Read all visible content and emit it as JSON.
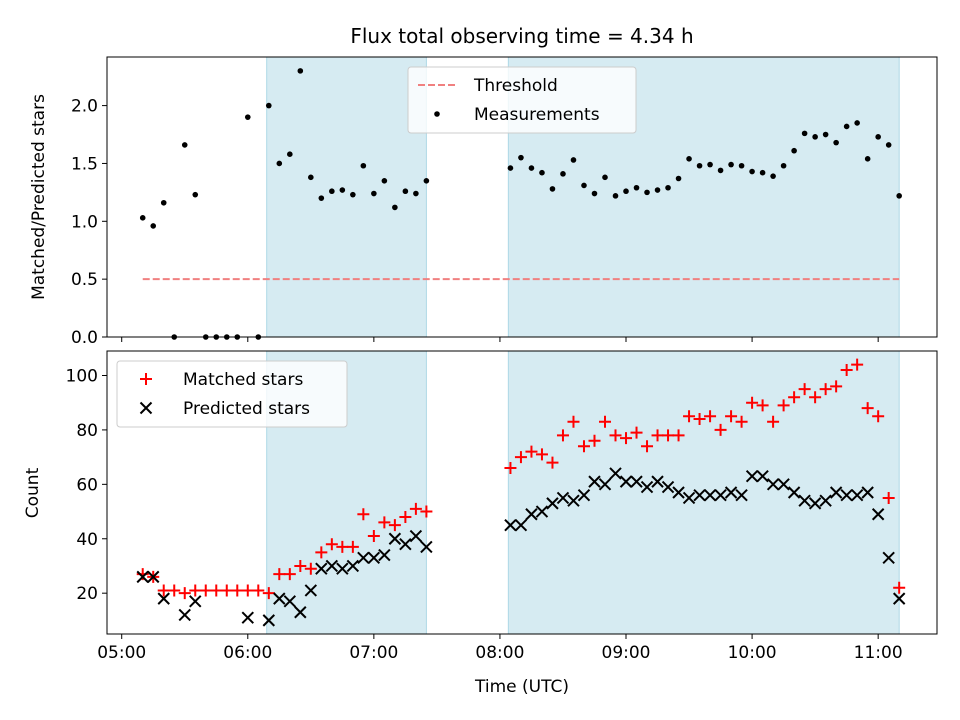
{
  "figure": {
    "title": "Flux total observing time = 4.34 h",
    "xlabel": "Time (UTC)",
    "x_ticks": [
      "05:00",
      "06:00",
      "07:00",
      "08:00",
      "09:00",
      "10:00",
      "11:00"
    ]
  },
  "chart_data": [
    {
      "type": "scatter",
      "ylabel": "Matched/Predicted stars",
      "xlim": [
        "04:53",
        "11:28"
      ],
      "ylim": [
        0,
        2.42
      ],
      "y_ticks": [
        "0.0",
        "0.5",
        "1.0",
        "1.5",
        "2.0"
      ],
      "grid": false,
      "legend_position": "upper center",
      "observing_windows": [
        {
          "start": "06:09",
          "end": "07:25"
        },
        {
          "start": "08:04",
          "end": "11:10"
        }
      ],
      "threshold": {
        "name": "Threshold",
        "value": 0.5,
        "x_start": "05:10",
        "x_end": "11:10",
        "color": "#f08080",
        "style": "dashed"
      },
      "series": [
        {
          "name": "Measurements",
          "color": "#000000",
          "marker": "dot",
          "x": [
            "05:10",
            "05:15",
            "05:20",
            "05:25",
            "05:30",
            "05:35",
            "05:40",
            "05:45",
            "05:50",
            "05:55",
            "06:00",
            "06:05",
            "06:10",
            "06:15",
            "06:20",
            "06:25",
            "06:30",
            "06:35",
            "06:40",
            "06:45",
            "06:50",
            "06:55",
            "07:00",
            "07:05",
            "07:10",
            "07:15",
            "07:20",
            "07:25",
            "08:05",
            "08:10",
            "08:15",
            "08:20",
            "08:25",
            "08:30",
            "08:35",
            "08:40",
            "08:45",
            "08:50",
            "08:55",
            "09:00",
            "09:05",
            "09:10",
            "09:15",
            "09:20",
            "09:25",
            "09:30",
            "09:35",
            "09:40",
            "09:45",
            "09:50",
            "09:55",
            "10:00",
            "10:05",
            "10:10",
            "10:15",
            "10:20",
            "10:25",
            "10:30",
            "10:35",
            "10:40",
            "10:45",
            "10:50",
            "10:55",
            "11:00",
            "11:05",
            "11:10"
          ],
          "y": [
            1.03,
            0.96,
            1.16,
            0.0,
            1.66,
            1.23,
            0.0,
            0.0,
            0.0,
            0.0,
            1.9,
            0.0,
            2.0,
            1.5,
            1.58,
            2.3,
            1.38,
            1.2,
            1.26,
            1.27,
            1.23,
            1.48,
            1.24,
            1.35,
            1.12,
            1.26,
            1.24,
            1.35,
            1.46,
            1.55,
            1.46,
            1.42,
            1.28,
            1.41,
            1.53,
            1.31,
            1.24,
            1.38,
            1.22,
            1.26,
            1.29,
            1.25,
            1.27,
            1.29,
            1.37,
            1.54,
            1.48,
            1.49,
            1.44,
            1.49,
            1.48,
            1.43,
            1.42,
            1.39,
            1.48,
            1.61,
            1.76,
            1.73,
            1.75,
            1.68,
            1.82,
            1.85,
            1.54,
            1.73,
            1.66,
            1.22
          ]
        }
      ]
    },
    {
      "type": "scatter",
      "ylabel": "Count",
      "xlim": [
        "04:53",
        "11:28"
      ],
      "ylim": [
        5,
        109
      ],
      "y_ticks": [
        "20",
        "40",
        "60",
        "80",
        "100"
      ],
      "grid": false,
      "legend_position": "upper left",
      "observing_windows": [
        {
          "start": "06:09",
          "end": "07:25"
        },
        {
          "start": "08:04",
          "end": "11:10"
        }
      ],
      "series": [
        {
          "name": "Matched stars",
          "color": "#ff0000",
          "marker": "plus",
          "x": [
            "05:10",
            "05:15",
            "05:20",
            "05:25",
            "05:30",
            "05:35",
            "05:40",
            "05:45",
            "05:50",
            "05:55",
            "06:00",
            "06:05",
            "06:10",
            "06:15",
            "06:20",
            "06:25",
            "06:30",
            "06:35",
            "06:40",
            "06:45",
            "06:50",
            "06:55",
            "07:00",
            "07:05",
            "07:10",
            "07:15",
            "07:20",
            "07:25",
            "08:05",
            "08:10",
            "08:15",
            "08:20",
            "08:25",
            "08:30",
            "08:35",
            "08:40",
            "08:45",
            "08:50",
            "08:55",
            "09:00",
            "09:05",
            "09:10",
            "09:15",
            "09:20",
            "09:25",
            "09:30",
            "09:35",
            "09:40",
            "09:45",
            "09:50",
            "09:55",
            "10:00",
            "10:05",
            "10:10",
            "10:15",
            "10:20",
            "10:25",
            "10:30",
            "10:35",
            "10:40",
            "10:45",
            "10:50",
            "10:55",
            "11:00",
            "11:05",
            "11:10"
          ],
          "y": [
            27,
            26,
            21,
            21,
            20,
            21,
            21,
            21,
            21,
            21,
            21,
            21,
            20,
            27,
            27,
            30,
            29,
            35,
            38,
            37,
            37,
            49,
            41,
            46,
            45,
            48,
            51,
            50,
            66,
            70,
            72,
            71,
            68,
            78,
            83,
            74,
            76,
            83,
            78,
            77,
            79,
            74,
            78,
            78,
            78,
            85,
            84,
            85,
            80,
            85,
            83,
            90,
            89,
            83,
            89,
            92,
            95,
            92,
            95,
            96,
            102,
            104,
            88,
            85,
            55,
            22
          ]
        },
        {
          "name": "Predicted stars",
          "color": "#000000",
          "marker": "x",
          "x": [
            "05:10",
            "05:15",
            "05:20",
            "05:30",
            "05:35",
            "06:00",
            "06:10",
            "06:15",
            "06:20",
            "06:25",
            "06:30",
            "06:35",
            "06:40",
            "06:45",
            "06:50",
            "06:55",
            "07:00",
            "07:05",
            "07:10",
            "07:15",
            "07:20",
            "07:25",
            "08:05",
            "08:10",
            "08:15",
            "08:20",
            "08:25",
            "08:30",
            "08:35",
            "08:40",
            "08:45",
            "08:50",
            "08:55",
            "09:00",
            "09:05",
            "09:10",
            "09:15",
            "09:20",
            "09:25",
            "09:30",
            "09:35",
            "09:40",
            "09:45",
            "09:50",
            "09:55",
            "10:00",
            "10:05",
            "10:10",
            "10:15",
            "10:20",
            "10:25",
            "10:30",
            "10:35",
            "10:40",
            "10:45",
            "10:50",
            "10:55",
            "11:00",
            "11:05",
            "11:10"
          ],
          "y": [
            26,
            26,
            18,
            12,
            17,
            11,
            10,
            18,
            17,
            13,
            21,
            29,
            30,
            29,
            30,
            33,
            33,
            34,
            40,
            38,
            41,
            37,
            45,
            45,
            49,
            50,
            53,
            55,
            54,
            56,
            61,
            60,
            64,
            61,
            61,
            59,
            61,
            59,
            57,
            55,
            56,
            56,
            56,
            57,
            56,
            63,
            63,
            60,
            60,
            57,
            54,
            53,
            54,
            57,
            56,
            56,
            57,
            49,
            33,
            18
          ]
        }
      ]
    }
  ]
}
